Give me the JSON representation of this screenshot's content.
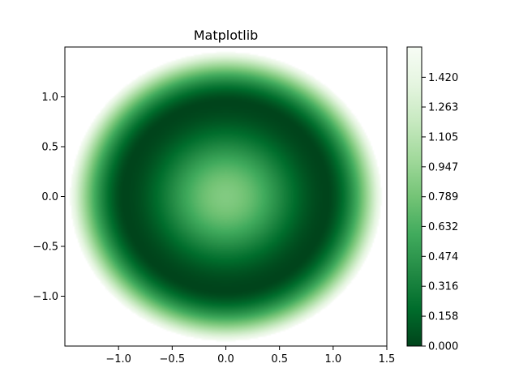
{
  "chart_data": {
    "type": "heatmap",
    "title": "Matplotlib",
    "xlabel": "",
    "ylabel": "",
    "xlim": [
      -1.5,
      1.5
    ],
    "ylim": [
      -1.5,
      1.5
    ],
    "grid": false,
    "x_ticks": [
      -1.0,
      -0.5,
      0.0,
      0.5,
      1.0,
      1.5
    ],
    "x_tick_labels": [
      "−1.0",
      "−0.5",
      "0.0",
      "0.5",
      "1.0",
      "1.5"
    ],
    "y_ticks": [
      -1.0,
      -0.5,
      0.0,
      0.5,
      1.0
    ],
    "y_tick_labels": [
      "−1.0",
      "−0.5",
      "0.0",
      "0.5",
      "1.0"
    ],
    "field": {
      "description_shape": "radial",
      "support_radius": 1.45,
      "center_value": 0.85,
      "ring_min_radius": 0.95,
      "ring_min_value": 0.0,
      "edge_value": 1.58
    },
    "colormap": {
      "name": "Greens_r",
      "stops": [
        "#00441b",
        "#006d2c",
        "#238b45",
        "#41ab5d",
        "#74c476",
        "#a1d99b",
        "#c7e9c0",
        "#e5f5e0",
        "#f7fcf5"
      ]
    },
    "colorbar": {
      "min": 0.0,
      "max": 1.58,
      "ticks": [
        0.0,
        0.158,
        0.316,
        0.474,
        0.632,
        0.789,
        0.947,
        1.105,
        1.263,
        1.42
      ],
      "tick_labels": [
        "0.000",
        "0.158",
        "0.316",
        "0.474",
        "0.632",
        "0.789",
        "0.947",
        "1.105",
        "1.263",
        "1.420"
      ]
    }
  }
}
